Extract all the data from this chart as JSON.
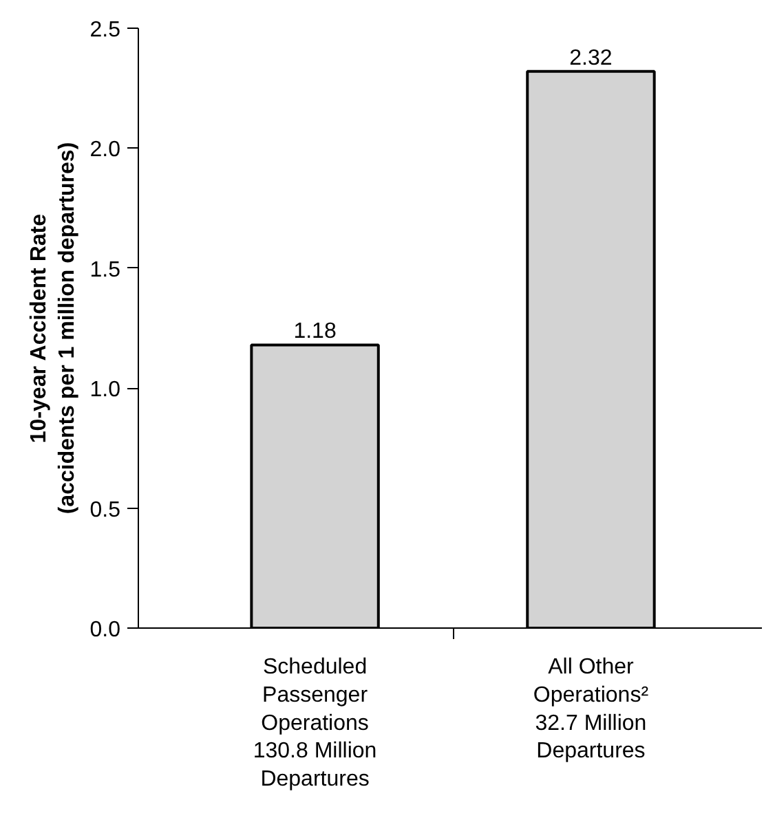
{
  "chart_data": {
    "type": "bar",
    "ylabel": "10-year Accident Rate\n(accidents per 1 million departures)",
    "categories": [
      "Scheduled\nPassenger\nOperations\n130.8 Million\nDepartures",
      "All Other\nOperations²\n32.7 Million\nDepartures"
    ],
    "values": [
      1.18,
      2.32
    ],
    "color": "#d3d3d3",
    "data_labels": true,
    "grid": false,
    "ylim": [
      0,
      2.5
    ],
    "yticks": [
      {
        "value": 0,
        "label": "0.0"
      },
      {
        "value": 0.5,
        "label": "0.5"
      },
      {
        "value": 1,
        "label": "1.0"
      },
      {
        "value": 1.5,
        "label": "1.5"
      },
      {
        "value": 2,
        "label": "2.0"
      },
      {
        "value": 2.5,
        "label": "2.5"
      }
    ]
  }
}
